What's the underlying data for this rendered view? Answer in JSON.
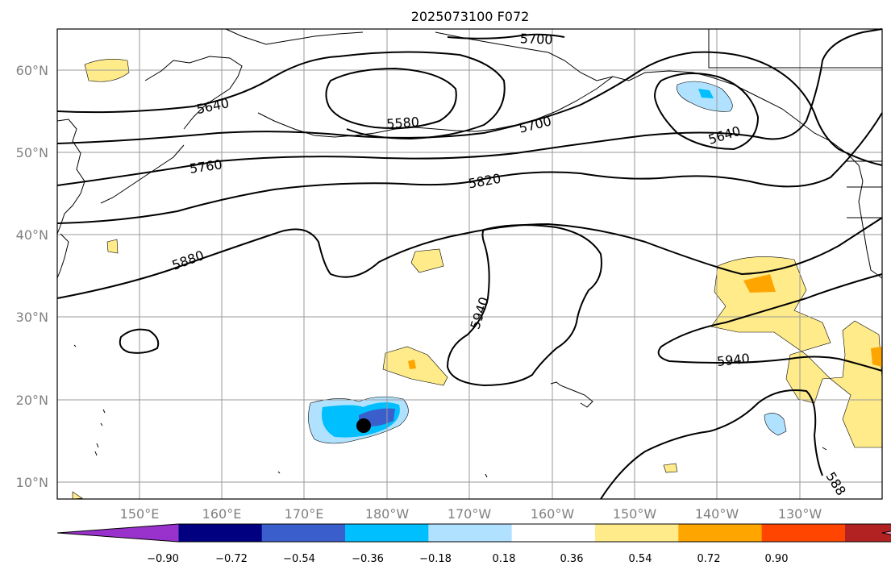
{
  "title": "2025073100 F072",
  "lon_labels": [
    "150°E",
    "160°E",
    "170°E",
    "180°W",
    "170°W",
    "160°W",
    "150°W",
    "140°W",
    "130°W"
  ],
  "lat_labels": [
    "60°N",
    "50°N",
    "40°N",
    "30°N",
    "20°N",
    "10°N"
  ],
  "contour_labels": [
    "5700",
    "5640",
    "5580",
    "5700",
    "5640",
    "5760",
    "5820",
    "5880",
    "5940",
    "5940",
    "588"
  ],
  "colorbar": {
    "colors": [
      "#9932cc",
      "#000080",
      "#3a5fcd",
      "#00bfff",
      "#b0e2ff",
      "#ffffff",
      "#ffeb8a",
      "#ffa500",
      "#ff4500",
      "#b22222",
      "#ff88aa"
    ],
    "tick_labels": [
      "−0.90",
      "−0.72",
      "−0.54",
      "−0.36",
      "−0.18",
      "0.18",
      "0.36",
      "0.54",
      "0.72",
      "0.90"
    ]
  },
  "colors": {
    "grid": "#9a9a9a",
    "tick_text": "#808080",
    "contour": "#000000"
  }
}
